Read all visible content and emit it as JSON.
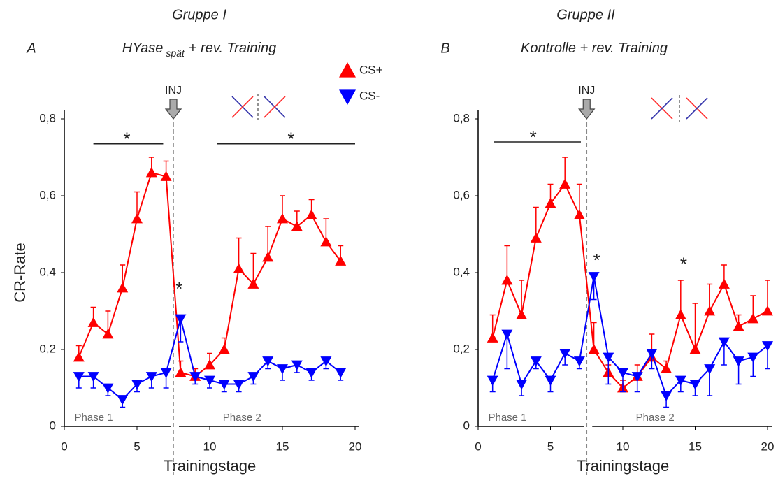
{
  "chart_data": [
    {
      "type": "line",
      "title": "Gruppe I",
      "panel_label": "A",
      "subtitle": "HYase",
      "subtitle_sub": "spät",
      "subtitle_rest": "+ rev. Training",
      "x_label": "Trainingstage",
      "y_label": "CR-Rate",
      "injection_label": "INJ",
      "phase_labels": [
        "Phase 1",
        "Phase 2"
      ],
      "annotations": [
        "*",
        "*",
        "*"
      ],
      "x": [
        1,
        2,
        3,
        4,
        5,
        6,
        7,
        8,
        9,
        10,
        11,
        12,
        13,
        14,
        15,
        16,
        17,
        18,
        19
      ],
      "series": [
        {
          "name": "CS+",
          "color": "#ff0000",
          "marker": "up",
          "values": [
            0.18,
            0.27,
            0.24,
            0.36,
            0.54,
            0.66,
            0.65,
            0.14,
            0.13,
            0.16,
            0.2,
            0.41,
            0.37,
            0.44,
            0.54,
            0.52,
            0.55,
            0.48,
            0.43
          ],
          "errors": [
            0.03,
            0.04,
            0.06,
            0.06,
            0.07,
            0.04,
            0.04,
            0.03,
            0.02,
            0.03,
            0.03,
            0.08,
            0.08,
            0.08,
            0.06,
            0.04,
            0.04,
            0.06,
            0.04
          ]
        },
        {
          "name": "CS-",
          "color": "#0000ff",
          "marker": "down",
          "values": [
            0.13,
            0.13,
            0.1,
            0.07,
            0.11,
            0.13,
            0.14,
            0.28,
            0.13,
            0.12,
            0.11,
            0.11,
            0.13,
            0.17,
            0.15,
            0.16,
            0.14,
            0.17,
            0.14
          ],
          "errors": [
            0.03,
            0.03,
            0.02,
            0.02,
            0.02,
            0.03,
            0.04,
            0.06,
            0.02,
            0.02,
            0.02,
            0.02,
            0.02,
            0.02,
            0.03,
            0.02,
            0.02,
            0.02,
            0.02
          ]
        }
      ],
      "xlim": [
        0,
        20
      ],
      "xticks": [
        0,
        5,
        10,
        15,
        20
      ],
      "ylim": [
        0,
        0.8
      ],
      "yticks": [
        0,
        {
          "value": 0.2,
          "label": "0,2"
        },
        {
          "value": 0.4,
          "label": "0,4"
        },
        {
          "value": 0.6,
          "label": "0,6"
        },
        {
          "value": 0.8,
          "label": "0,8"
        }
      ]
    },
    {
      "type": "line",
      "title": "Gruppe II",
      "panel_label": "B",
      "subtitle": "Kontrolle + rev. Training",
      "x_label": "Trainingstage",
      "injection_label": "INJ",
      "phase_labels": [
        "Phase 1",
        "Phase 2"
      ],
      "annotations": [
        "*",
        "*",
        "*"
      ],
      "x": [
        1,
        2,
        3,
        4,
        5,
        6,
        7,
        8,
        9,
        10,
        11,
        12,
        13,
        14,
        15,
        16,
        17,
        18,
        19,
        20
      ],
      "series": [
        {
          "color": "#ff0000",
          "marker": "up",
          "values": [
            0.23,
            0.38,
            0.29,
            0.49,
            0.58,
            0.63,
            0.55,
            0.2,
            0.14,
            0.1,
            0.13,
            0.18,
            0.15,
            0.29,
            0.2,
            0.3,
            0.37,
            0.26,
            0.28,
            0.3
          ],
          "errors": [
            0.06,
            0.09,
            0.09,
            0.08,
            0.05,
            0.07,
            0.08,
            0.07,
            0.02,
            0.02,
            0.03,
            0.06,
            0.02,
            0.09,
            0.12,
            0.07,
            0.05,
            0.03,
            0.06,
            0.08
          ]
        },
        {
          "color": "#0000ff",
          "marker": "down",
          "values": [
            0.12,
            0.24,
            0.11,
            0.17,
            0.12,
            0.19,
            0.17,
            0.39,
            0.18,
            0.14,
            0.13,
            0.19,
            0.08,
            0.12,
            0.11,
            0.15,
            0.22,
            0.17,
            0.18,
            0.21
          ],
          "errors": [
            0.03,
            0.09,
            0.03,
            0.02,
            0.03,
            0.03,
            0.02,
            0.06,
            0.07,
            0.05,
            0.04,
            0.04,
            0.03,
            0.03,
            0.03,
            0.07,
            0.06,
            0.06,
            0.05,
            0.06
          ]
        }
      ],
      "xlim": [
        0,
        20
      ],
      "xticks": [
        0,
        5,
        10,
        15,
        20
      ],
      "ylim": [
        0,
        0.8
      ],
      "yticks": [
        0,
        {
          "value": 0.2,
          "label": "0,2"
        },
        {
          "value": 0.4,
          "label": "0,4"
        },
        {
          "value": 0.6,
          "label": "0,6"
        },
        {
          "value": 0.8,
          "label": "0,8"
        }
      ]
    }
  ]
}
